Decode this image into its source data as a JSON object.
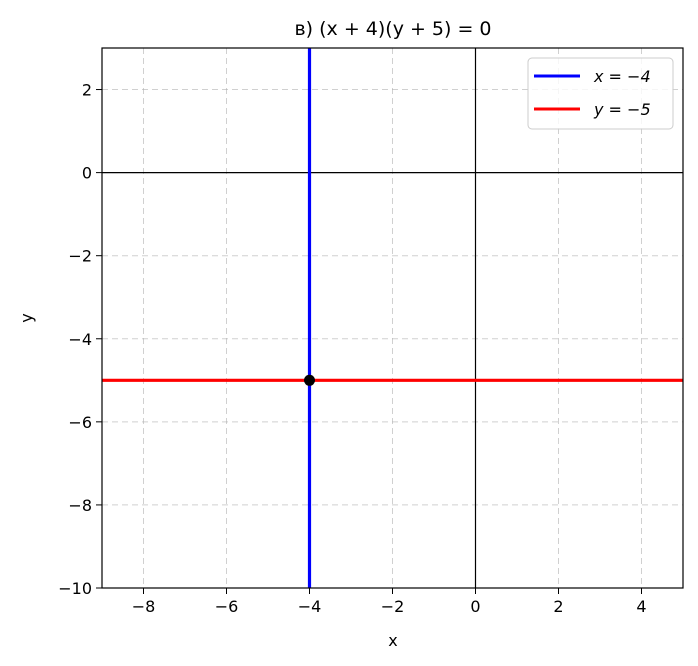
{
  "chart_data": {
    "type": "line",
    "title": "в) (x + 4)(y + 5) = 0",
    "xlabel": "x",
    "ylabel": "y",
    "xlim": [
      -9,
      5
    ],
    "ylim": [
      -10,
      3
    ],
    "xticks": [
      -8,
      -6,
      -4,
      -2,
      0,
      2,
      4
    ],
    "yticks": [
      2,
      0,
      -2,
      -4,
      -6,
      -8,
      -10
    ],
    "xtick_labels": [
      "−8",
      "−6",
      "−4",
      "−2",
      "0",
      "2",
      "4"
    ],
    "ytick_labels": [
      "2",
      "0",
      "−2",
      "−4",
      "−6",
      "−8",
      "−10"
    ],
    "grid": true,
    "grid_style": "dashed",
    "legend_position": "top-right",
    "series": [
      {
        "name": "x = −4",
        "kind": "vertical",
        "x": -4,
        "color": "#0000ff"
      },
      {
        "name": "y = −5",
        "kind": "horizontal",
        "y": -5,
        "color": "#ff0000"
      }
    ],
    "reference_lines": {
      "x": 0,
      "y": 0,
      "color": "#000000"
    },
    "points": [
      {
        "x": -4,
        "y": -5,
        "color": "#000000"
      }
    ]
  }
}
